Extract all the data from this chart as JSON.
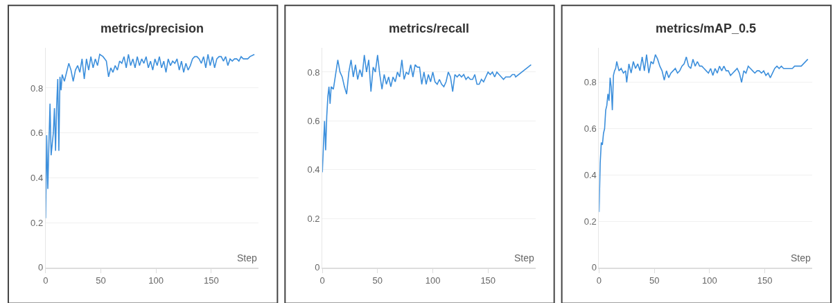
{
  "chart_data": [
    {
      "type": "line",
      "title": "metrics/precision",
      "xlabel": "Step",
      "xlim": [
        0,
        193
      ],
      "ylim": [
        0,
        0.98
      ],
      "xticks": [
        0,
        50,
        100,
        150
      ],
      "yticks": [
        0,
        0.2,
        0.4,
        0.6,
        0.8
      ],
      "grid": "y",
      "series": [
        {
          "color": "#3c8fdc",
          "x": [
            0,
            1,
            2,
            3,
            4,
            5,
            6,
            7,
            8,
            9,
            10,
            11,
            12,
            13,
            14,
            15,
            17,
            19,
            21,
            23,
            25,
            27,
            29,
            31,
            33,
            35,
            37,
            39,
            41,
            43,
            45,
            47,
            49,
            52,
            55,
            57,
            59,
            61,
            63,
            65,
            67,
            69,
            71,
            73,
            75,
            77,
            79,
            81,
            83,
            85,
            87,
            89,
            91,
            93,
            95,
            97,
            99,
            101,
            103,
            105,
            107,
            109,
            111,
            113,
            115,
            117,
            119,
            121,
            123,
            125,
            127,
            129,
            131,
            133,
            135,
            137,
            139,
            141,
            143,
            145,
            147,
            149,
            151,
            153,
            155,
            157,
            159,
            161,
            163,
            165,
            167,
            169,
            171,
            173,
            175,
            177,
            179,
            181,
            183,
            185,
            189
          ],
          "values": [
            0.22,
            0.59,
            0.35,
            0.55,
            0.73,
            0.5,
            0.55,
            0.6,
            0.71,
            0.52,
            0.72,
            0.84,
            0.52,
            0.85,
            0.79,
            0.86,
            0.83,
            0.87,
            0.91,
            0.88,
            0.83,
            0.88,
            0.9,
            0.87,
            0.93,
            0.84,
            0.93,
            0.88,
            0.94,
            0.89,
            0.93,
            0.9,
            0.95,
            0.94,
            0.92,
            0.85,
            0.89,
            0.87,
            0.9,
            0.88,
            0.92,
            0.91,
            0.94,
            0.89,
            0.95,
            0.9,
            0.93,
            0.89,
            0.94,
            0.9,
            0.93,
            0.91,
            0.94,
            0.89,
            0.92,
            0.88,
            0.93,
            0.9,
            0.94,
            0.89,
            0.92,
            0.87,
            0.93,
            0.9,
            0.92,
            0.91,
            0.93,
            0.88,
            0.92,
            0.87,
            0.91,
            0.88,
            0.9,
            0.93,
            0.94,
            0.94,
            0.93,
            0.91,
            0.94,
            0.89,
            0.95,
            0.9,
            0.94,
            0.89,
            0.93,
            0.94,
            0.94,
            0.92,
            0.94,
            0.9,
            0.93,
            0.92,
            0.93,
            0.93,
            0.92,
            0.94,
            0.93,
            0.93,
            0.93,
            0.94,
            0.95
          ]
        }
      ]
    },
    {
      "type": "line",
      "title": "metrics/recall",
      "xlabel": "Step",
      "xlim": [
        0,
        193
      ],
      "ylim": [
        0,
        0.9
      ],
      "xticks": [
        0,
        50,
        100,
        150
      ],
      "yticks": [
        0,
        0.2,
        0.4,
        0.6,
        0.8
      ],
      "grid": "y",
      "series": [
        {
          "color": "#3c8fdc",
          "x": [
            0,
            1,
            2,
            3,
            4,
            5,
            6,
            7,
            8,
            10,
            12,
            14,
            16,
            18,
            20,
            22,
            24,
            26,
            28,
            30,
            32,
            34,
            36,
            38,
            40,
            42,
            44,
            46,
            48,
            50,
            52,
            54,
            56,
            58,
            60,
            62,
            64,
            66,
            68,
            70,
            72,
            74,
            76,
            78,
            80,
            82,
            84,
            86,
            88,
            90,
            92,
            94,
            96,
            98,
            100,
            102,
            104,
            106,
            108,
            110,
            112,
            114,
            116,
            118,
            120,
            122,
            124,
            126,
            128,
            130,
            132,
            134,
            136,
            138,
            140,
            142,
            144,
            146,
            148,
            150,
            152,
            154,
            156,
            158,
            160,
            162,
            164,
            166,
            170,
            172,
            174,
            175,
            189
          ],
          "values": [
            0.39,
            0.5,
            0.6,
            0.48,
            0.62,
            0.7,
            0.74,
            0.67,
            0.74,
            0.73,
            0.79,
            0.85,
            0.8,
            0.78,
            0.74,
            0.71,
            0.8,
            0.85,
            0.78,
            0.83,
            0.77,
            0.81,
            0.78,
            0.87,
            0.8,
            0.85,
            0.72,
            0.82,
            0.8,
            0.87,
            0.79,
            0.73,
            0.79,
            0.75,
            0.78,
            0.74,
            0.78,
            0.76,
            0.8,
            0.78,
            0.85,
            0.77,
            0.8,
            0.79,
            0.83,
            0.78,
            0.83,
            0.82,
            0.82,
            0.75,
            0.8,
            0.75,
            0.79,
            0.76,
            0.8,
            0.76,
            0.75,
            0.77,
            0.75,
            0.74,
            0.76,
            0.8,
            0.78,
            0.72,
            0.79,
            0.78,
            0.79,
            0.78,
            0.79,
            0.77,
            0.78,
            0.77,
            0.77,
            0.79,
            0.75,
            0.75,
            0.77,
            0.76,
            0.78,
            0.8,
            0.79,
            0.8,
            0.78,
            0.8,
            0.79,
            0.78,
            0.77,
            0.78,
            0.78,
            0.79,
            0.79,
            0.78,
            0.83
          ]
        }
      ]
    },
    {
      "type": "line",
      "title": "metrics/mAP_0.5",
      "xlabel": "Step",
      "xlim": [
        0,
        193
      ],
      "ylim": [
        0,
        0.95
      ],
      "xticks": [
        0,
        50,
        100,
        150
      ],
      "yticks": [
        0,
        0.2,
        0.4,
        0.6,
        0.8
      ],
      "grid": "y",
      "series": [
        {
          "color": "#3c8fdc",
          "x": [
            0,
            1,
            2,
            3,
            4,
            5,
            6,
            7,
            8,
            9,
            10,
            11,
            12,
            13,
            14,
            15,
            16,
            18,
            20,
            22,
            24,
            25,
            27,
            29,
            31,
            33,
            35,
            37,
            39,
            41,
            43,
            45,
            47,
            49,
            51,
            53,
            55,
            57,
            59,
            61,
            63,
            65,
            67,
            69,
            71,
            73,
            75,
            77,
            79,
            81,
            83,
            85,
            87,
            89,
            91,
            93,
            95,
            97,
            99,
            101,
            103,
            105,
            107,
            109,
            111,
            113,
            115,
            117,
            119,
            121,
            123,
            125,
            127,
            129,
            131,
            133,
            135,
            137,
            139,
            141,
            143,
            145,
            147,
            149,
            151,
            153,
            155,
            157,
            159,
            161,
            163,
            165,
            167,
            169,
            171,
            173,
            175,
            177,
            179,
            181,
            183,
            189
          ],
          "values": [
            0.24,
            0.45,
            0.54,
            0.53,
            0.58,
            0.6,
            0.68,
            0.7,
            0.75,
            0.72,
            0.82,
            0.78,
            0.68,
            0.83,
            0.85,
            0.86,
            0.89,
            0.85,
            0.86,
            0.84,
            0.85,
            0.8,
            0.88,
            0.84,
            0.89,
            0.86,
            0.88,
            0.85,
            0.91,
            0.85,
            0.92,
            0.84,
            0.89,
            0.88,
            0.92,
            0.9,
            0.87,
            0.85,
            0.81,
            0.85,
            0.82,
            0.84,
            0.85,
            0.86,
            0.84,
            0.85,
            0.87,
            0.88,
            0.91,
            0.87,
            0.86,
            0.9,
            0.87,
            0.89,
            0.87,
            0.87,
            0.86,
            0.85,
            0.84,
            0.86,
            0.83,
            0.86,
            0.84,
            0.87,
            0.85,
            0.87,
            0.85,
            0.85,
            0.83,
            0.84,
            0.85,
            0.86,
            0.84,
            0.8,
            0.85,
            0.84,
            0.87,
            0.86,
            0.85,
            0.84,
            0.85,
            0.85,
            0.84,
            0.85,
            0.83,
            0.84,
            0.82,
            0.84,
            0.86,
            0.87,
            0.86,
            0.87,
            0.86,
            0.86,
            0.86,
            0.86,
            0.86,
            0.87,
            0.87,
            0.87,
            0.87,
            0.9
          ]
        }
      ]
    }
  ]
}
